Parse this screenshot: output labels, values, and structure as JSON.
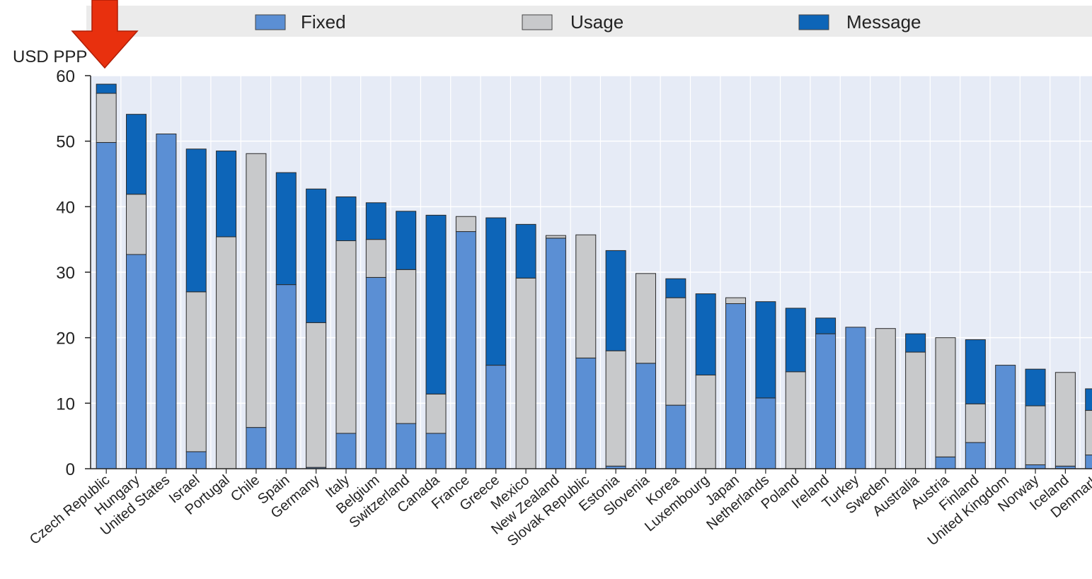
{
  "colors": {
    "fixed": "#5b8fd4",
    "usage": "#c8c9cb",
    "message": "#0d65b8",
    "plot_bg": "#e6ebf6",
    "legend_bg": "#ebebeb",
    "annotation_arrow": "#e8300e"
  },
  "annotation": {
    "icon": "down-arrow-icon",
    "points_to": "Czech Republic"
  },
  "chart_data": {
    "type": "bar",
    "stacked": true,
    "ylabel": "USD PPP",
    "ylim": [
      0,
      60
    ],
    "yticks": [
      "0",
      "10",
      "20",
      "30",
      "40",
      "50",
      "60"
    ],
    "grid": true,
    "legend": {
      "placement": "top",
      "entries": [
        "Fixed",
        "Usage",
        "Message"
      ]
    },
    "categories": [
      "Czech Republic",
      "Hungary",
      "United States",
      "Israel",
      "Portugal",
      "Chile",
      "Spain",
      "Germany",
      "Italy",
      "Belgium",
      "Switzerland",
      "Canada",
      "France",
      "Greece",
      "Mexico",
      "New Zealand",
      "Slovak Republic",
      "Estonia",
      "Slovenia",
      "Korea",
      "Luxembourg",
      "Japan",
      "Netherlands",
      "Poland",
      "Ireland",
      "Turkey",
      "Sweden",
      "Australia",
      "Austria",
      "Finland",
      "United Kingdom",
      "Norway",
      "Iceland",
      "Denmark"
    ],
    "series": [
      {
        "name": "Fixed",
        "values": [
          49.8,
          32.7,
          51.1,
          2.6,
          0,
          6.3,
          28.1,
          0.2,
          5.4,
          29.2,
          6.9,
          5.4,
          36.2,
          15.8,
          0,
          35.2,
          16.9,
          0.4,
          16.1,
          9.7,
          0,
          25.2,
          10.8,
          0,
          20.6,
          21.6,
          0,
          0,
          1.8,
          4.0,
          15.8,
          0.6,
          0.4,
          2.1
        ]
      },
      {
        "name": "Usage",
        "values": [
          7.5,
          9.2,
          0,
          24.4,
          35.4,
          41.8,
          0,
          22.1,
          29.4,
          5.8,
          23.5,
          6.0,
          2.3,
          0,
          29.1,
          0.4,
          18.8,
          17.6,
          13.7,
          16.4,
          14.3,
          0.9,
          0,
          14.8,
          0,
          0,
          21.4,
          17.8,
          18.2,
          5.9,
          0,
          9.0,
          14.3,
          6.8
        ]
      },
      {
        "name": "Message",
        "values": [
          1.4,
          12.2,
          0,
          21.8,
          13.1,
          0,
          17.1,
          20.4,
          6.7,
          5.6,
          8.9,
          27.3,
          0,
          22.5,
          8.2,
          0,
          0,
          15.3,
          0,
          2.9,
          12.4,
          0,
          14.7,
          9.7,
          2.4,
          0,
          0,
          2.8,
          0,
          9.8,
          0,
          5.6,
          0,
          3.3
        ]
      }
    ]
  }
}
